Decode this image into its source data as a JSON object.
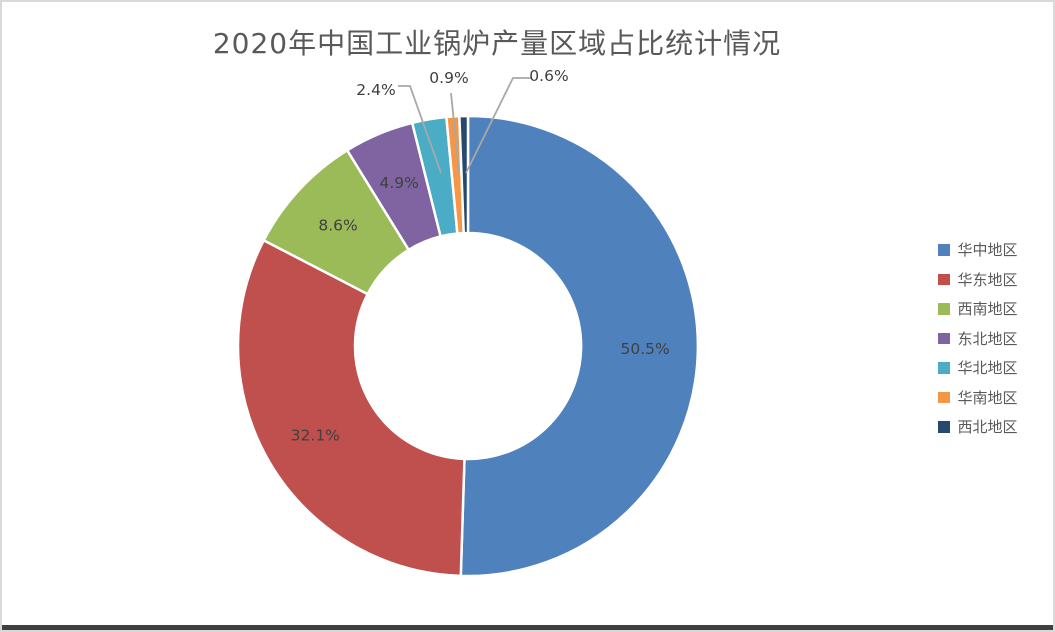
{
  "page": {
    "background_color": "#ffffff",
    "frame_border_color": "#d9d9d9",
    "bottom_bar_color": "#3f3f3f"
  },
  "chart_data": {
    "type": "pie",
    "subtype": "donut",
    "title": "2020年中国工业锅炉产量区域占比统计情况",
    "legend_position": "right",
    "direction": "clockwise",
    "start_angle_deg": 0,
    "donut_hole_ratio": 0.49,
    "title_color": "#595959",
    "label_color": "#404040",
    "legend_text_color": "#595959",
    "leader_line_color": "#a8a8a8",
    "slice_border_color": "#ffffff",
    "slices": [
      {
        "name": "华中地区",
        "value": 50.5,
        "label": "50.5%",
        "color": "#4F81BD"
      },
      {
        "name": "华东地区",
        "value": 32.1,
        "label": "32.1%",
        "color": "#C0504D"
      },
      {
        "name": "西南地区",
        "value": 8.6,
        "label": "8.6%",
        "color": "#9BBB59"
      },
      {
        "name": "东北地区",
        "value": 4.9,
        "label": "4.9%",
        "color": "#8064A2"
      },
      {
        "name": "华北地区",
        "value": 2.4,
        "label": "2.4%",
        "color": "#4BACC6"
      },
      {
        "name": "华南地区",
        "value": 0.9,
        "label": "0.9%",
        "color": "#F79646"
      },
      {
        "name": "西北地区",
        "value": 0.6,
        "label": "0.6%",
        "color": "#27496D"
      }
    ]
  }
}
